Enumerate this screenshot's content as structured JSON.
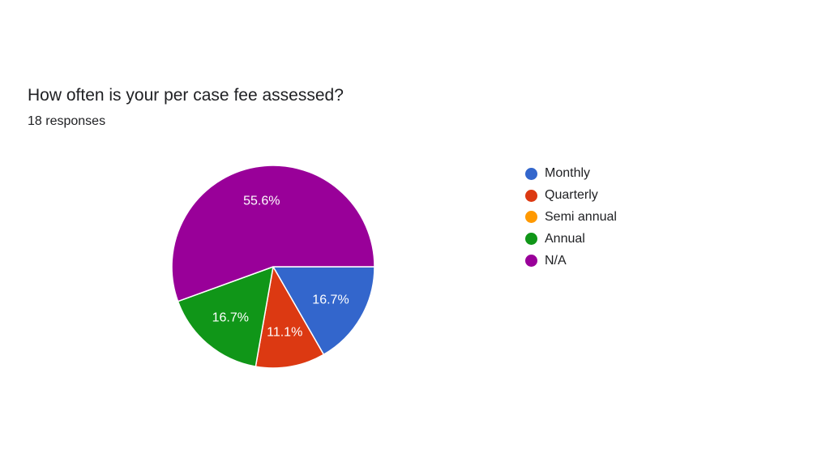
{
  "question": {
    "title": "How often is your per case fee assessed?",
    "responses": "18 responses"
  },
  "chart_data": {
    "type": "pie",
    "title": "How often is your per case fee assessed?",
    "legend_position": "right",
    "slices": [
      {
        "label": "Monthly",
        "value": 16.7,
        "value_label": "16.7%",
        "color": "#3366cc"
      },
      {
        "label": "Quarterly",
        "value": 11.1,
        "value_label": "11.1%",
        "color": "#dc3912"
      },
      {
        "label": "Semi annual",
        "value": 0,
        "value_label": "",
        "color": "#ff9900"
      },
      {
        "label": "Annual",
        "value": 16.7,
        "value_label": "16.7%",
        "color": "#109618"
      },
      {
        "label": "N/A",
        "value": 55.6,
        "value_label": "55.6%",
        "color": "#990099"
      }
    ]
  }
}
